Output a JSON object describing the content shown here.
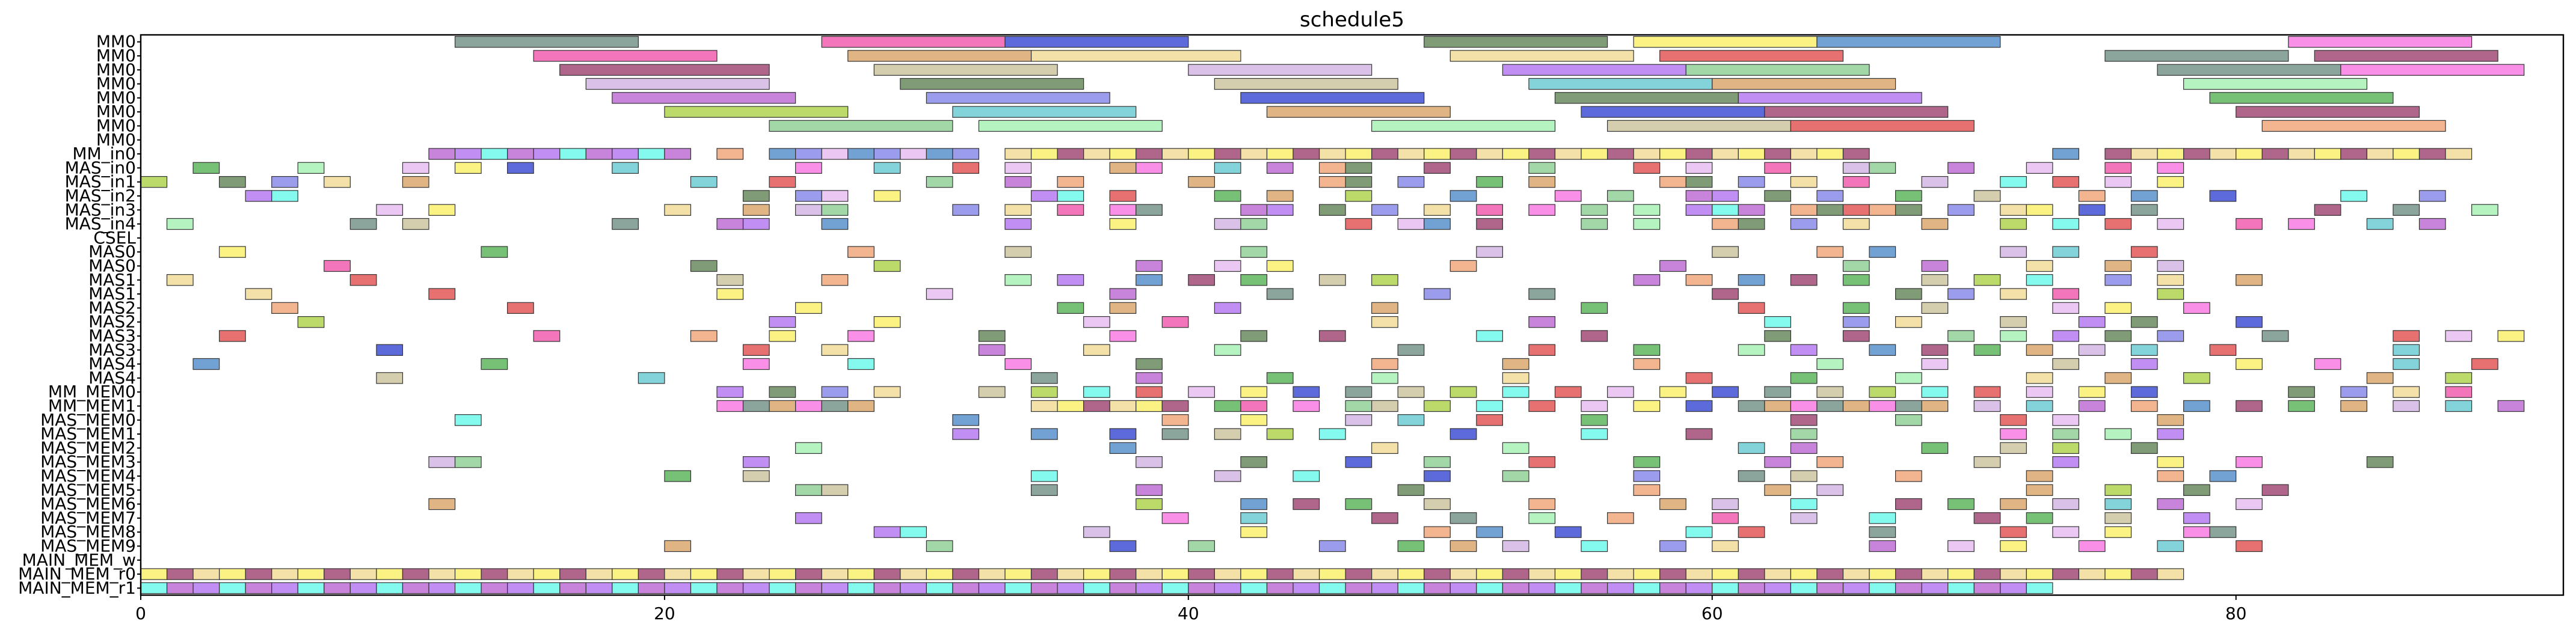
{
  "chart_data": {
    "type": "gantt",
    "title": "schedule5",
    "xlabel": "",
    "ylabel": "",
    "xlim": [
      0,
      92.5
    ],
    "x_ticks": [
      0,
      20,
      40,
      60,
      80
    ],
    "grid": false,
    "rows": [
      "MM0",
      "MM0",
      "MM0",
      "MM0",
      "MM0",
      "MM0",
      "MM0",
      "MM0",
      "MM_in0",
      "MAS_in0",
      "MAS_in1",
      "MAS_in2",
      "MAS_in3",
      "MAS_in4",
      "CSEL",
      "MAS0",
      "MAS0",
      "MAS1",
      "MAS1",
      "MAS2",
      "MAS2",
      "MAS3",
      "MAS3",
      "MAS4",
      "MAS4",
      "MM_MEM0",
      "MM_MEM1",
      "MAS_MEM0",
      "MAS_MEM1",
      "MAS_MEM2",
      "MAS_MEM3",
      "MAS_MEM4",
      "MAS_MEM5",
      "MAS_MEM6",
      "MAS_MEM7",
      "MAS_MEM8",
      "MAS_MEM9",
      "MAIN_MEM_w",
      "MAIN_MEM_r0",
      "MAIN_MEM_r1"
    ],
    "palette": [
      "#6a8a80",
      "#f04fa8",
      "#9a3a6a",
      "#e6b8f0",
      "#5b8050",
      "#b860d0",
      "#a8d040",
      "#88cc90",
      "#d8a060",
      "#3040d0",
      "#f0d890",
      "#4a88c8",
      "#e04848",
      "#b070f0",
      "#60c8d0",
      "#c8c098",
      "#f870e0",
      "#50b050",
      "#f8f060",
      "#8080e8",
      "#f0a070",
      "#60f8e8",
      "#a0f0b0",
      "#d0b0e0"
    ],
    "tasks": [
      {
        "row": 0,
        "start": 12.0,
        "end": 19.0,
        "c": 0
      },
      {
        "row": 0,
        "start": 26.0,
        "end": 33.0,
        "c": 1
      },
      {
        "row": 0,
        "start": 33.0,
        "end": 40.0,
        "c": 9
      },
      {
        "row": 0,
        "start": 49.0,
        "end": 56.0,
        "c": 4
      },
      {
        "row": 0,
        "start": 57.0,
        "end": 64.0,
        "c": 18
      },
      {
        "row": 0,
        "start": 64.0,
        "end": 71.0,
        "c": 11
      },
      {
        "row": 0,
        "start": 82.0,
        "end": 89.0,
        "c": 16
      },
      {
        "row": 1,
        "start": 15.0,
        "end": 22.0,
        "c": 1
      },
      {
        "row": 1,
        "start": 27.0,
        "end": 34.0,
        "c": 8
      },
      {
        "row": 1,
        "start": 34.0,
        "end": 42.0,
        "c": 10
      },
      {
        "row": 1,
        "start": 50.0,
        "end": 57.0,
        "c": 10
      },
      {
        "row": 1,
        "start": 58.0,
        "end": 65.0,
        "c": 12
      },
      {
        "row": 1,
        "start": 75.0,
        "end": 82.0,
        "c": 0
      },
      {
        "row": 1,
        "start": 83.0,
        "end": 90.0,
        "c": 2
      },
      {
        "row": 2,
        "start": 16.0,
        "end": 24.0,
        "c": 2
      },
      {
        "row": 2,
        "start": 28.0,
        "end": 35.0,
        "c": 15
      },
      {
        "row": 2,
        "start": 40.0,
        "end": 47.0,
        "c": 23
      },
      {
        "row": 2,
        "start": 52.0,
        "end": 59.0,
        "c": 13
      },
      {
        "row": 2,
        "start": 59.0,
        "end": 66.0,
        "c": 7
      },
      {
        "row": 2,
        "start": 77.0,
        "end": 84.0,
        "c": 0
      },
      {
        "row": 2,
        "start": 84.0,
        "end": 91.0,
        "c": 16
      },
      {
        "row": 3,
        "start": 17.0,
        "end": 24.0,
        "c": 23
      },
      {
        "row": 3,
        "start": 29.0,
        "end": 36.0,
        "c": 4
      },
      {
        "row": 3,
        "start": 41.0,
        "end": 48.0,
        "c": 15
      },
      {
        "row": 3,
        "start": 53.0,
        "end": 60.0,
        "c": 14
      },
      {
        "row": 3,
        "start": 60.0,
        "end": 67.0,
        "c": 8
      },
      {
        "row": 3,
        "start": 78.0,
        "end": 85.0,
        "c": 22
      },
      {
        "row": 4,
        "start": 18.0,
        "end": 25.0,
        "c": 5
      },
      {
        "row": 4,
        "start": 30.0,
        "end": 37.0,
        "c": 19
      },
      {
        "row": 4,
        "start": 42.0,
        "end": 49.0,
        "c": 9
      },
      {
        "row": 4,
        "start": 54.0,
        "end": 61.0,
        "c": 4
      },
      {
        "row": 4,
        "start": 61.0,
        "end": 68.0,
        "c": 13
      },
      {
        "row": 4,
        "start": 79.0,
        "end": 86.0,
        "c": 17
      },
      {
        "row": 5,
        "start": 20.0,
        "end": 27.0,
        "c": 6
      },
      {
        "row": 5,
        "start": 31.0,
        "end": 38.0,
        "c": 14
      },
      {
        "row": 5,
        "start": 43.0,
        "end": 50.0,
        "c": 8
      },
      {
        "row": 5,
        "start": 55.0,
        "end": 62.0,
        "c": 9
      },
      {
        "row": 5,
        "start": 62.0,
        "end": 69.0,
        "c": 2
      },
      {
        "row": 5,
        "start": 80.0,
        "end": 87.0,
        "c": 2
      },
      {
        "row": 6,
        "start": 24.0,
        "end": 31.0,
        "c": 7
      },
      {
        "row": 6,
        "start": 32.0,
        "end": 39.0,
        "c": 22
      },
      {
        "row": 6,
        "start": 47.0,
        "end": 54.0,
        "c": 22
      },
      {
        "row": 6,
        "start": 56.0,
        "end": 63.0,
        "c": 15
      },
      {
        "row": 6,
        "start": 63.0,
        "end": 70.0,
        "c": 12
      },
      {
        "row": 6,
        "start": 81.0,
        "end": 88.0,
        "c": 20
      }
    ],
    "chip_rows": {
      "8": {
        "slots": [
          11,
          12,
          13,
          14,
          15,
          16,
          17,
          18,
          19,
          20,
          22,
          24,
          25,
          26,
          27,
          28,
          29,
          30,
          31,
          33,
          34,
          35,
          36,
          37,
          38,
          39,
          40,
          41,
          42,
          43,
          44,
          45,
          46,
          47,
          48,
          49,
          50,
          51,
          52,
          53,
          54,
          55,
          56,
          57,
          58,
          59,
          60,
          61,
          62,
          63,
          64,
          65,
          73,
          75,
          76,
          77,
          78,
          79,
          80,
          81,
          82,
          83,
          84,
          85,
          86,
          87,
          88
        ]
      },
      "9": {
        "slots": [
          2,
          6,
          10,
          12,
          14,
          18,
          25,
          28,
          31,
          33,
          37,
          38,
          41,
          43,
          45,
          46,
          49,
          53,
          57,
          59,
          62,
          65,
          66,
          69,
          72,
          75,
          77
        ]
      },
      "10": {
        "slots": [
          0,
          3,
          5,
          7,
          10,
          21,
          24,
          30,
          33,
          35,
          40,
          45,
          46,
          48,
          51,
          53,
          58,
          59,
          61,
          63,
          65,
          68,
          71,
          73,
          75,
          77
        ]
      },
      "11": {
        "slots": [
          4,
          5,
          23,
          25,
          26,
          28,
          34,
          35,
          37,
          41,
          43,
          46,
          50,
          54,
          56,
          59,
          60,
          62,
          64,
          67,
          70,
          74,
          76,
          79,
          84,
          87
        ]
      },
      "12": {
        "slots": [
          9,
          11,
          20,
          23,
          25,
          26,
          31,
          33,
          35,
          37,
          38,
          42,
          43,
          45,
          47,
          49,
          51,
          53,
          55,
          57,
          59,
          60,
          61,
          63,
          64,
          65,
          66,
          67,
          69,
          71,
          72,
          74,
          76,
          83,
          86,
          89
        ]
      },
      "13": {
        "slots": [
          1,
          8,
          10,
          18,
          22,
          23,
          26,
          33,
          37,
          41,
          42,
          46,
          48,
          49,
          51,
          55,
          57,
          60,
          61,
          63,
          65,
          68,
          71,
          73,
          75,
          77,
          80,
          82,
          85,
          87
        ]
      },
      "15": {
        "slots": [
          3,
          13,
          27,
          33,
          42,
          51,
          60,
          64,
          66,
          71,
          73,
          76
        ]
      },
      "16": {
        "slots": [
          7,
          21,
          28,
          38,
          41,
          43,
          50,
          58,
          65,
          68,
          72,
          75,
          77
        ]
      },
      "17": {
        "slots": [
          1,
          8,
          22,
          26,
          33,
          35,
          38,
          40,
          42,
          45,
          47,
          57,
          59,
          61,
          63,
          65,
          68,
          70,
          72,
          75,
          77,
          80
        ]
      },
      "18": {
        "slots": [
          4,
          11,
          22,
          30,
          37,
          43,
          49,
          53,
          60,
          67,
          69,
          71,
          73,
          77
        ]
      },
      "19": {
        "slots": [
          5,
          14,
          25,
          35,
          37,
          41,
          47,
          55,
          61,
          65,
          68,
          73,
          75,
          78
        ]
      },
      "20": {
        "slots": [
          6,
          24,
          28,
          36,
          39,
          47,
          53,
          62,
          65,
          67,
          71,
          74,
          76,
          80
        ]
      },
      "21": {
        "slots": [
          3,
          15,
          21,
          24,
          27,
          32,
          37,
          42,
          45,
          51,
          55,
          62,
          65,
          69,
          71,
          73,
          75,
          77,
          81,
          86,
          88,
          90
        ]
      },
      "22": {
        "slots": [
          9,
          23,
          26,
          32,
          36,
          41,
          48,
          53,
          57,
          61,
          63,
          66,
          68,
          70,
          72,
          74,
          76,
          79,
          86
        ]
      },
      "23": {
        "slots": [
          2,
          13,
          23,
          27,
          33,
          38,
          47,
          52,
          57,
          64,
          68,
          73,
          76,
          80,
          83,
          86,
          89
        ]
      },
      "24": {
        "slots": [
          9,
          19,
          34,
          38,
          43,
          47,
          52,
          59,
          63,
          67,
          72,
          75,
          78,
          85,
          88
        ]
      },
      "25": {
        "slots": [
          22,
          24,
          26,
          28,
          32,
          34,
          36,
          38,
          40,
          42,
          44,
          46,
          48,
          50,
          52,
          54,
          56,
          58,
          60,
          62,
          64,
          66,
          68,
          70,
          72,
          74,
          76,
          82,
          84,
          86,
          88
        ]
      },
      "26": {
        "slots": [
          22,
          23,
          24,
          25,
          26,
          27,
          34,
          35,
          36,
          37,
          38,
          39,
          41,
          42,
          44,
          46,
          47,
          49,
          51,
          53,
          55,
          57,
          59,
          61,
          62,
          63,
          64,
          65,
          66,
          67,
          68,
          70,
          72,
          74,
          76,
          78,
          80,
          82,
          84,
          86,
          88,
          90
        ]
      },
      "27": {
        "slots": [
          12,
          31,
          39,
          42,
          46,
          48,
          51,
          55,
          63,
          67,
          71,
          73,
          77
        ]
      },
      "28": {
        "slots": [
          31,
          34,
          37,
          39,
          41,
          43,
          45,
          50,
          55,
          59,
          63,
          71,
          73,
          75,
          77
        ]
      },
      "29": {
        "slots": [
          25,
          37,
          47,
          52,
          61,
          63,
          68,
          71,
          73,
          76
        ]
      },
      "30": {
        "slots": [
          11,
          12,
          23,
          38,
          42,
          46,
          49,
          53,
          57,
          62,
          64,
          70,
          73,
          77,
          80,
          85
        ]
      },
      "31": {
        "slots": [
          20,
          23,
          34,
          41,
          44,
          49,
          52,
          57,
          61,
          63,
          67,
          72,
          77,
          79
        ]
      },
      "32": {
        "slots": [
          25,
          26,
          34,
          38,
          48,
          57,
          62,
          64,
          72,
          75,
          78,
          81
        ]
      },
      "33": {
        "slots": [
          11,
          38,
          42,
          44,
          46,
          49,
          53,
          58,
          60,
          63,
          67,
          69,
          71,
          73,
          75,
          77,
          80
        ]
      },
      "34": {
        "slots": [
          25,
          39,
          42,
          47,
          50,
          53,
          56,
          60,
          63,
          66,
          70,
          72,
          75,
          78
        ]
      },
      "35": {
        "slots": [
          28,
          29,
          36,
          42,
          49,
          51,
          54,
          59,
          61,
          66,
          71,
          73,
          75,
          78,
          79
        ]
      },
      "36": {
        "slots": [
          20,
          30,
          37,
          40,
          45,
          48,
          50,
          52,
          55,
          58,
          60,
          66,
          69,
          71,
          74,
          77,
          80
        ]
      },
      "38": {
        "slots": [
          0,
          1,
          2,
          3,
          4,
          5,
          6,
          7,
          8,
          9,
          10,
          11,
          12,
          13,
          14,
          15,
          16,
          17,
          18,
          19,
          20,
          21,
          22,
          23,
          24,
          25,
          26,
          27,
          28,
          29,
          30,
          31,
          32,
          33,
          34,
          35,
          36,
          37,
          38,
          39,
          40,
          41,
          42,
          43,
          44,
          45,
          46,
          47,
          48,
          49,
          50,
          51,
          52,
          53,
          54,
          55,
          56,
          57,
          58,
          59,
          60,
          61,
          62,
          63,
          64,
          65,
          66,
          67,
          68,
          69,
          70,
          71,
          72,
          73,
          74,
          75,
          76,
          77
        ]
      },
      "39": {
        "slots": [
          0,
          1,
          2,
          3,
          4,
          5,
          6,
          7,
          8,
          9,
          10,
          11,
          12,
          13,
          14,
          15,
          16,
          17,
          18,
          19,
          20,
          21,
          22,
          23,
          24,
          25,
          26,
          27,
          28,
          29,
          30,
          31,
          32,
          33,
          34,
          35,
          36,
          37,
          38,
          39,
          40,
          41,
          42,
          43,
          44,
          45,
          46,
          47,
          48,
          49,
          50,
          51,
          52,
          53,
          54,
          55,
          56,
          57,
          58,
          59,
          60,
          61,
          62,
          63,
          64,
          65,
          66,
          67,
          68,
          69,
          70,
          71,
          72
        ]
      }
    }
  }
}
